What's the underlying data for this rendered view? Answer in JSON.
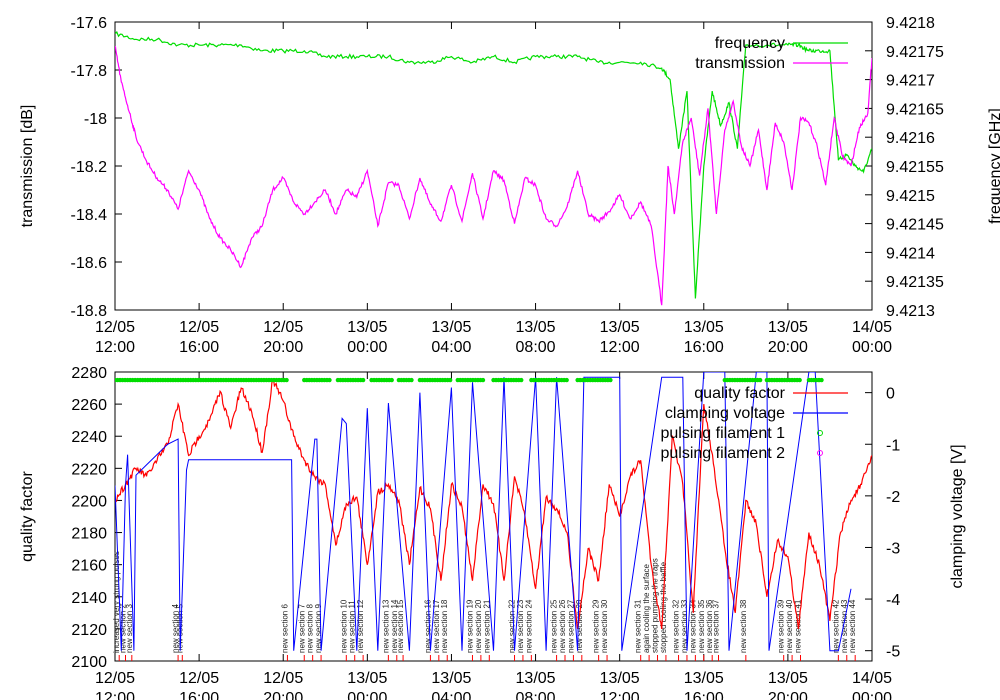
{
  "chart_data": [
    {
      "type": "line",
      "title": "",
      "ylabel": "transmission [dB]",
      "y2label": "frequency [GHz]",
      "ylim": [
        -18.8,
        -17.6
      ],
      "y2lim": [
        9.4213,
        9.4218
      ],
      "yticks": [
        "-17.6",
        "-17.8",
        "-18",
        "-18.2",
        "-18.4",
        "-18.6",
        "-18.8"
      ],
      "y2ticks": [
        "9.4218",
        "9.42175",
        "9.4217",
        "9.42165",
        "9.4216",
        "9.42155",
        "9.4215",
        "9.42145",
        "9.4214",
        "9.42135",
        "9.4213"
      ],
      "xlim_hours": [
        0,
        36
      ],
      "xticks": [
        {
          "date": "12/05",
          "time": "12:00"
        },
        {
          "date": "12/05",
          "time": "16:00"
        },
        {
          "date": "12/05",
          "time": "20:00"
        },
        {
          "date": "13/05",
          "time": "00:00"
        },
        {
          "date": "13/05",
          "time": "04:00"
        },
        {
          "date": "13/05",
          "time": "08:00"
        },
        {
          "date": "13/05",
          "time": "12:00"
        },
        {
          "date": "13/05",
          "time": "16:00"
        },
        {
          "date": "13/05",
          "time": "20:00"
        },
        {
          "date": "14/05",
          "time": "00:00"
        }
      ],
      "legend_position": "top-right",
      "series": [
        {
          "name": "frequency",
          "color": "#00dd00",
          "axis": "right",
          "x": [
            0,
            1,
            2,
            3,
            4,
            5,
            6,
            7,
            8,
            9,
            10,
            11,
            12,
            13,
            14,
            15,
            16,
            17,
            18,
            19,
            20,
            21,
            22,
            23,
            24,
            25,
            26,
            26.4,
            26.8,
            27.2,
            27.6,
            28,
            28.4,
            28.8,
            29.2,
            29.6,
            30,
            31,
            32,
            32.5,
            33,
            33.5,
            34,
            34.4,
            34.8,
            35.2,
            35.6,
            36
          ],
          "y": [
            9.42178,
            9.42177,
            9.42177,
            9.42176,
            9.42176,
            9.42176,
            9.42176,
            9.42175,
            9.42175,
            9.42175,
            9.42174,
            9.42174,
            9.42174,
            9.42174,
            9.42173,
            9.42173,
            9.42174,
            9.42173,
            9.42174,
            9.42173,
            9.42174,
            9.42174,
            9.42174,
            9.42173,
            9.42173,
            9.42173,
            9.42172,
            9.4217,
            9.42158,
            9.42168,
            9.42132,
            9.42155,
            9.42168,
            9.42162,
            9.42166,
            9.42158,
            9.42176,
            9.42176,
            9.42176,
            9.42176,
            9.42175,
            9.42175,
            9.42175,
            9.42156,
            9.42157,
            9.42155,
            9.42154,
            9.42158
          ]
        },
        {
          "name": "transmission",
          "color": "#ff00ff",
          "axis": "left",
          "x": [
            0,
            0.3,
            0.7,
            1,
            1.5,
            2,
            2.5,
            3,
            3.5,
            4,
            4.5,
            5,
            5.5,
            6,
            6.5,
            7,
            7.5,
            8,
            8.5,
            9,
            9.5,
            10,
            10.5,
            11,
            11.5,
            12,
            12.5,
            13,
            13.5,
            14,
            14.5,
            15,
            15.5,
            16,
            16.5,
            17,
            17.5,
            18,
            18.5,
            19,
            19.5,
            20,
            20.5,
            21,
            21.5,
            22,
            22.5,
            23,
            23.5,
            24,
            24.5,
            25,
            25.5,
            26,
            26.3,
            26.6,
            27,
            27.4,
            27.8,
            28.2,
            28.6,
            29,
            29.4,
            29.8,
            30.2,
            30.6,
            31,
            31.4,
            31.8,
            32.2,
            32.6,
            33,
            33.4,
            33.8,
            34.2,
            34.6,
            35,
            35.4,
            35.8,
            36
          ],
          "y": [
            -17.7,
            -17.85,
            -17.98,
            -18.08,
            -18.18,
            -18.25,
            -18.3,
            -18.38,
            -18.22,
            -18.3,
            -18.42,
            -18.5,
            -18.55,
            -18.62,
            -18.5,
            -18.45,
            -18.3,
            -18.25,
            -18.35,
            -18.4,
            -18.35,
            -18.3,
            -18.4,
            -18.3,
            -18.33,
            -18.22,
            -18.45,
            -18.27,
            -18.28,
            -18.42,
            -18.25,
            -18.36,
            -18.43,
            -18.28,
            -18.43,
            -18.23,
            -18.42,
            -18.22,
            -18.26,
            -18.44,
            -18.25,
            -18.28,
            -18.42,
            -18.45,
            -18.37,
            -18.22,
            -18.4,
            -18.43,
            -18.39,
            -18.32,
            -18.42,
            -18.35,
            -18.45,
            -18.78,
            -18.2,
            -18.4,
            -18.1,
            -18.0,
            -18.24,
            -17.96,
            -18.4,
            -18.05,
            -17.93,
            -18.12,
            -18.2,
            -18.05,
            -18.3,
            -18.02,
            -18.1,
            -18.3,
            -18.0,
            -18.02,
            -18.12,
            -18.28,
            -18.0,
            -18.16,
            -18.2,
            -18.04,
            -17.98,
            -17.75
          ]
        }
      ]
    },
    {
      "type": "line",
      "title": "",
      "ylabel": "quality factor",
      "y2label": "clamping voltage [V]",
      "ylim": [
        2100,
        2280
      ],
      "y2lim": [
        -5.2,
        0.4
      ],
      "yticks": [
        "2280",
        "2260",
        "2240",
        "2220",
        "2200",
        "2180",
        "2160",
        "2140",
        "2120",
        "2100"
      ],
      "y2ticks": [
        "0",
        "-1",
        "-2",
        "-3",
        "-4",
        "-5"
      ],
      "xlim_hours": [
        0,
        36
      ],
      "xticks": [
        {
          "date": "12/05",
          "time": "12:00"
        },
        {
          "date": "12/05",
          "time": "16:00"
        },
        {
          "date": "12/05",
          "time": "20:00"
        },
        {
          "date": "13/05",
          "time": "00:00"
        },
        {
          "date": "13/05",
          "time": "04:00"
        },
        {
          "date": "13/05",
          "time": "08:00"
        },
        {
          "date": "13/05",
          "time": "12:00"
        },
        {
          "date": "13/05",
          "time": "16:00"
        },
        {
          "date": "13/05",
          "time": "20:00"
        },
        {
          "date": "14/05",
          "time": "00:00"
        }
      ],
      "legend_position": "top-right",
      "series": [
        {
          "name": "quality factor",
          "color": "#ff0000",
          "axis": "left",
          "x": [
            0,
            0.5,
            1,
            1.5,
            2,
            2.5,
            3,
            3.5,
            4,
            4.5,
            5,
            5.5,
            6,
            6.5,
            7,
            7.5,
            8,
            8.5,
            9,
            9.5,
            10,
            10.5,
            11,
            11.5,
            12,
            12.5,
            13,
            13.5,
            14,
            14.5,
            15,
            15.5,
            16,
            16.5,
            17,
            17.5,
            18,
            18.5,
            19,
            19.5,
            20,
            20.5,
            21,
            21.5,
            22,
            22.5,
            23,
            23.5,
            24,
            24.5,
            25,
            25.5,
            26,
            26.5,
            27,
            27.5,
            28,
            28.5,
            29,
            29.5,
            30,
            30.5,
            31,
            31.5,
            32,
            32.5,
            33,
            33.5,
            34,
            34.5,
            35,
            35.5,
            36
          ],
          "y": [
            2200,
            2210,
            2220,
            2215,
            2225,
            2235,
            2260,
            2228,
            2240,
            2250,
            2268,
            2245,
            2270,
            2255,
            2230,
            2275,
            2262,
            2240,
            2225,
            2215,
            2210,
            2172,
            2198,
            2202,
            2160,
            2205,
            2210,
            2200,
            2160,
            2208,
            2195,
            2150,
            2210,
            2196,
            2150,
            2210,
            2198,
            2150,
            2215,
            2190,
            2145,
            2202,
            2195,
            2180,
            2120,
            2170,
            2150,
            2210,
            2190,
            2215,
            2225,
            2160,
            2120,
            2240,
            2210,
            2130,
            2260,
            2220,
            2170,
            2130,
            2200,
            2185,
            2140,
            2175,
            2165,
            2120,
            2180,
            2160,
            2125,
            2180,
            2200,
            2210,
            2228
          ]
        },
        {
          "name": "clamping voltage",
          "color": "#0000ff",
          "axis": "right",
          "x": [
            0,
            0.3,
            0.5,
            0.6,
            0.9,
            1.0,
            1.5,
            2.5,
            3.0,
            3.1,
            3.4,
            3.5,
            5.0,
            5.5,
            6.0,
            6.5,
            7.0,
            7.5,
            8.0,
            8.4,
            8.5,
            9.5,
            9.6,
            9.8,
            10.8,
            11.0,
            11.5,
            12.0,
            12.5,
            13.0,
            14.0,
            14.5,
            15.0,
            16.0,
            16.5,
            17.0,
            18.0,
            18.5,
            19.0,
            20.0,
            20.5,
            21.0,
            22.0,
            22.3,
            23.2,
            24.0,
            24.1,
            26.0,
            27.0,
            27.2,
            28.0,
            29.0,
            29.2,
            30.5,
            31.0,
            31.1,
            33.0,
            33.3,
            34.0,
            34.4,
            35.0
          ],
          "y": [
            -1.8,
            -5.0,
            -1.8,
            -1.2,
            -5.0,
            -1.6,
            -1.4,
            -1.0,
            -0.9,
            -5.0,
            -1.5,
            -1.3,
            -1.3,
            -1.3,
            -1.3,
            -1.3,
            -1.3,
            -1.3,
            -1.3,
            -1.3,
            -5.0,
            -0.9,
            -0.9,
            -5.0,
            -0.5,
            -0.6,
            -5.0,
            -0.3,
            -5.0,
            -0.2,
            -5.0,
            0.0,
            -5.0,
            0.1,
            -5.0,
            0.2,
            -5.0,
            0.3,
            -5.0,
            0.3,
            -5.0,
            0.3,
            -5.0,
            0.3,
            0.3,
            0.3,
            -5.0,
            0.3,
            0.3,
            -5.0,
            0.4,
            0.4,
            -5.0,
            0.4,
            0.4,
            -5.0,
            0.4,
            0.4,
            -5.0,
            -5.0,
            -3.8
          ]
        },
        {
          "name": "pulsing filament 1",
          "color": "#00dd00",
          "axis": "left",
          "style": "points",
          "segments": [
            [
              0,
              8.2
            ],
            [
              9.0,
              10.2
            ],
            [
              10.6,
              11.8
            ],
            [
              12.2,
              13.2
            ],
            [
              13.5,
              14.2
            ],
            [
              14.5,
              16.0
            ],
            [
              16.3,
              17.6
            ],
            [
              18.0,
              19.4
            ],
            [
              19.8,
              21.6
            ],
            [
              22.0,
              23.6
            ],
            [
              29.0,
              30.7
            ],
            [
              31.0,
              32.6
            ],
            [
              33.0,
              33.6
            ]
          ],
          "level": 2275
        },
        {
          "name": "pulsing filament 2",
          "color": "#ff00ff",
          "axis": "left",
          "style": "points",
          "segments": [],
          "level": 2275
        }
      ],
      "annotations": [
        {
          "x": 0.2,
          "text": "increased very strong pulses"
        },
        {
          "x": 0.5,
          "text": "new section 2"
        },
        {
          "x": 0.8,
          "text": "new section 3"
        },
        {
          "x": 3.0,
          "text": "new section 4"
        },
        {
          "x": 3.2,
          "text": "new section 5"
        },
        {
          "x": 8.2,
          "text": "new section 6"
        },
        {
          "x": 9.0,
          "text": "new section 7"
        },
        {
          "x": 9.4,
          "text": "new section 8"
        },
        {
          "x": 9.8,
          "text": "new section 9"
        },
        {
          "x": 11.0,
          "text": "new section 10"
        },
        {
          "x": 11.4,
          "text": "new section 11"
        },
        {
          "x": 11.8,
          "text": "new section 12"
        },
        {
          "x": 13.0,
          "text": "new section 13"
        },
        {
          "x": 13.4,
          "text": "new section 14"
        },
        {
          "x": 13.7,
          "text": "new section 15"
        },
        {
          "x": 15.0,
          "text": "new section 16"
        },
        {
          "x": 15.4,
          "text": "new section 17"
        },
        {
          "x": 15.8,
          "text": "new section 18"
        },
        {
          "x": 17.0,
          "text": "new section 19"
        },
        {
          "x": 17.4,
          "text": "new section 20"
        },
        {
          "x": 17.8,
          "text": "new section 21"
        },
        {
          "x": 19.0,
          "text": "new section 22"
        },
        {
          "x": 19.4,
          "text": "new section 23"
        },
        {
          "x": 19.8,
          "text": "new section 24"
        },
        {
          "x": 21.0,
          "text": "new section 25"
        },
        {
          "x": 21.4,
          "text": "new section 26"
        },
        {
          "x": 21.8,
          "text": "new section 27"
        },
        {
          "x": 22.2,
          "text": "new section 28"
        },
        {
          "x": 23.0,
          "text": "new section 29"
        },
        {
          "x": 23.4,
          "text": "new section 30"
        },
        {
          "x": 25.0,
          "text": "new section 31"
        },
        {
          "x": 25.4,
          "text": "again cooling the surface"
        },
        {
          "x": 25.8,
          "text": "stopped pumping the traps"
        },
        {
          "x": 26.2,
          "text": "stopped cooling the baffle"
        },
        {
          "x": 26.8,
          "text": "new section 32"
        },
        {
          "x": 27.2,
          "text": "new section 33"
        },
        {
          "x": 27.6,
          "text": "new section 34"
        },
        {
          "x": 28.0,
          "text": "new section 35"
        },
        {
          "x": 28.4,
          "text": "new section 36"
        },
        {
          "x": 28.7,
          "text": "new section 37"
        },
        {
          "x": 30.0,
          "text": "new section 38"
        },
        {
          "x": 31.8,
          "text": "new section 39"
        },
        {
          "x": 32.2,
          "text": "new section 40"
        },
        {
          "x": 32.6,
          "text": "new section 41"
        },
        {
          "x": 34.4,
          "text": "new section 42"
        },
        {
          "x": 34.8,
          "text": "new section 43"
        },
        {
          "x": 35.2,
          "text": "new section 44"
        }
      ]
    }
  ]
}
